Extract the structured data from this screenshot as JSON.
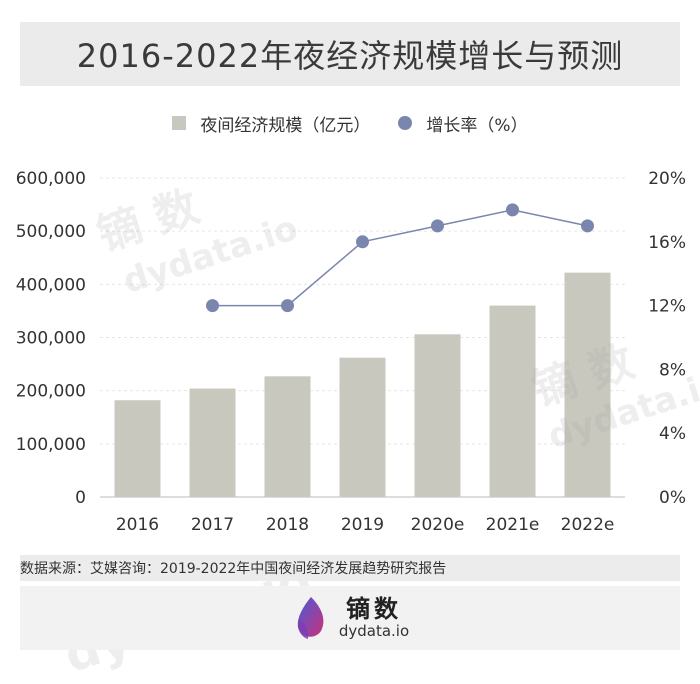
{
  "title": "2016-2022年夜经济规模增长与预测",
  "legend": {
    "bar_label": "夜间经济规模（亿元）",
    "line_label": "增长率（%）"
  },
  "source_text": "数据来源：艾媒咨询：2019-2022年中国夜间经济发展趋势研究报告",
  "brand": {
    "name": "镝数",
    "url": "dydata.io"
  },
  "watermarks": [
    "镝 数",
    "dydata.io",
    "镝 数",
    "dydata.io",
    "dydata.io"
  ],
  "colors": {
    "bar": "#c8c8bf",
    "line": "#7a86ad",
    "title_band": "#ebebeb"
  },
  "chart_data": {
    "type": "bar",
    "categories": [
      "2016",
      "2017",
      "2018",
      "2019",
      "2020e",
      "2021e",
      "2022e"
    ],
    "series": [
      {
        "name": "夜间经济规模（亿元）",
        "type": "bar",
        "axis": "left",
        "values": [
          182000,
          204000,
          227000,
          262000,
          306000,
          360000,
          422000
        ]
      },
      {
        "name": "增长率（%）",
        "type": "line",
        "axis": "right",
        "values": [
          null,
          12,
          12,
          16,
          17,
          18,
          17
        ]
      }
    ],
    "ylim": [
      0,
      600000
    ],
    "y_ticks": [
      "0",
      "100,000",
      "200,000",
      "300,000",
      "400,000",
      "500,000",
      "600,000"
    ],
    "y2lim": [
      0,
      20
    ],
    "y2_ticks": [
      "0%",
      "4%",
      "8%",
      "12%",
      "16%",
      "20%"
    ],
    "grid": true
  }
}
